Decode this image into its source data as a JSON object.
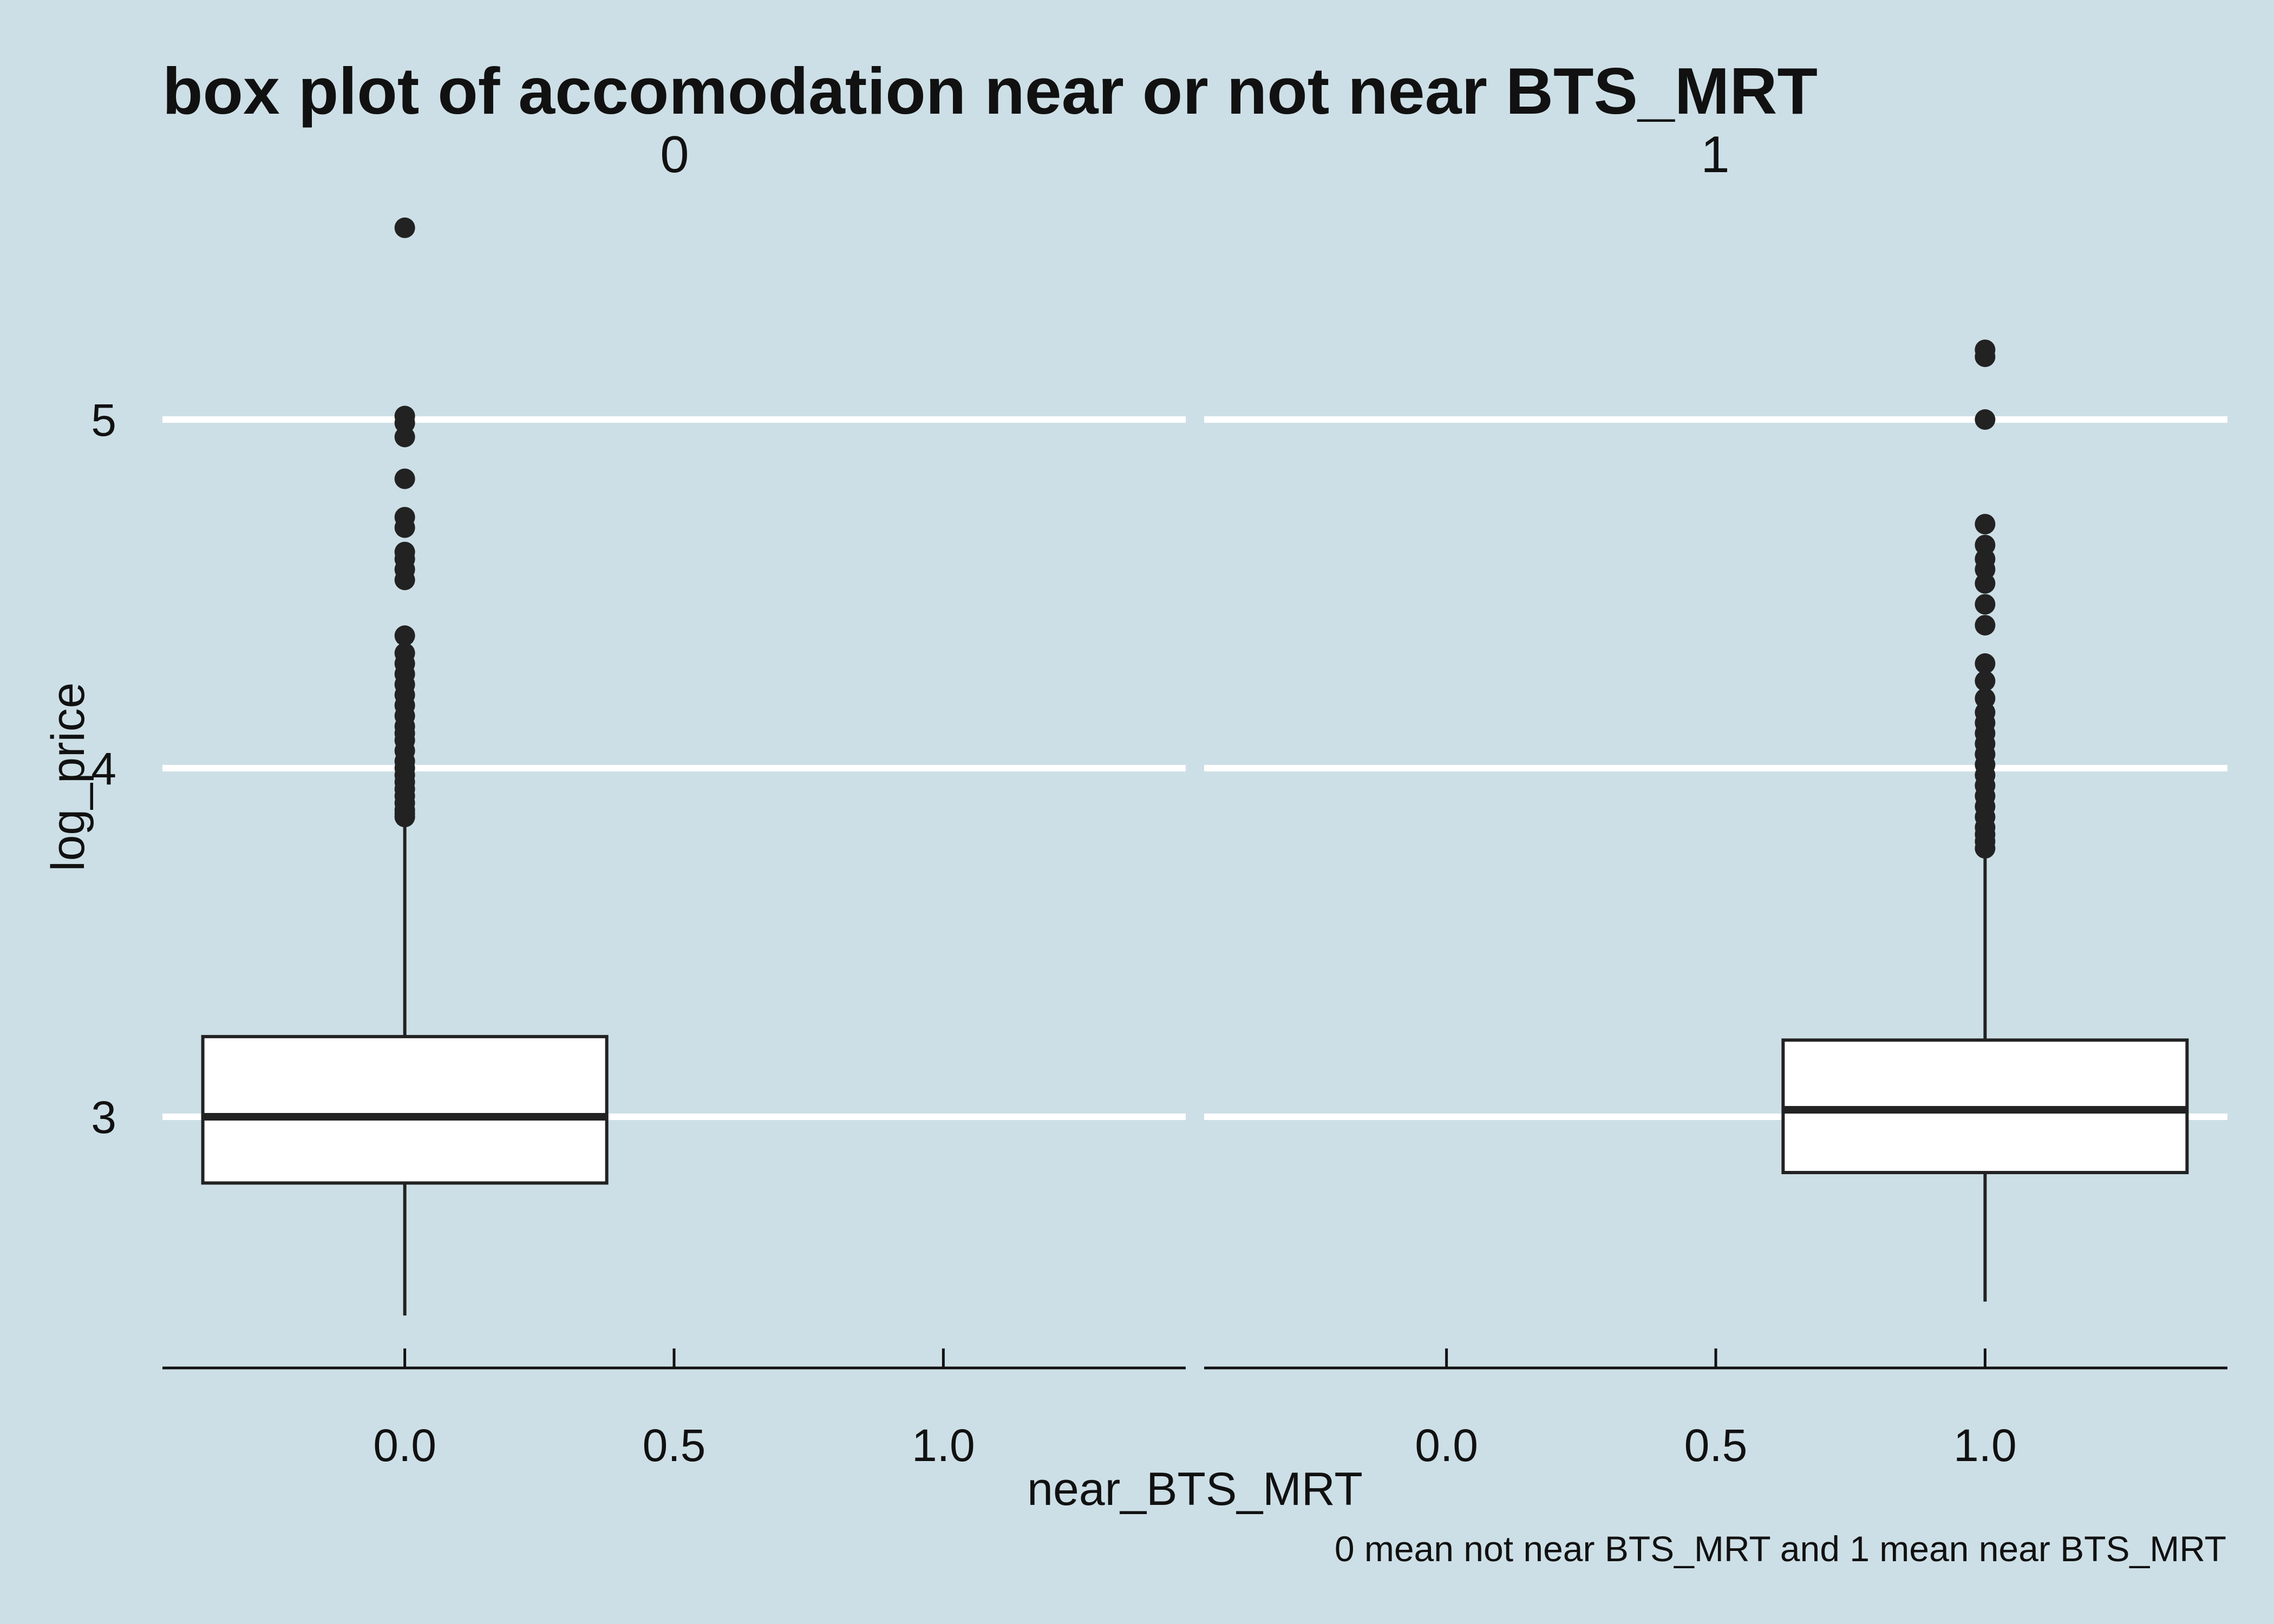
{
  "chart_data": {
    "type": "boxplot",
    "title": "box plot of accomodation near or not near BTS_MRT",
    "caption": "0 mean not near BTS_MRT and 1 mean near BTS_MRT",
    "xlabel": "near_BTS_MRT",
    "ylabel": "log_price",
    "facet_variable": "near_BTS_MRT",
    "grid": "horizontal major only",
    "colors": {
      "background": "#cddfe6",
      "grid": "#ffffff",
      "box_fill": "#ffffff",
      "ink": "#222222"
    },
    "ylim": [
      2.3,
      5.7
    ],
    "y_ticks": [
      3,
      4,
      5
    ],
    "y_tick_labels": [
      "3",
      "4",
      "5"
    ],
    "xlim": [
      -0.45,
      1.45
    ],
    "x_ticks": [
      0.0,
      0.5,
      1.0
    ],
    "x_tick_labels": [
      "0.0",
      "0.5",
      "1.0"
    ],
    "panels": [
      {
        "facet": "0",
        "box": {
          "x": 0,
          "width": 0.75,
          "lower_whisker": 2.43,
          "q1": 2.81,
          "median": 3.0,
          "q3": 3.23,
          "upper_whisker": 3.86,
          "outliers": [
            3.86,
            3.87,
            3.88,
            3.9,
            3.92,
            3.94,
            3.96,
            3.98,
            4.0,
            4.02,
            4.05,
            4.08,
            4.1,
            4.12,
            4.15,
            4.18,
            4.21,
            4.24,
            4.27,
            4.3,
            4.33,
            4.38,
            4.54,
            4.57,
            4.6,
            4.62,
            4.69,
            4.72,
            4.83,
            4.95,
            4.99,
            5.01,
            5.55
          ]
        }
      },
      {
        "facet": "1",
        "box": {
          "x": 1,
          "width": 0.75,
          "lower_whisker": 2.47,
          "q1": 2.84,
          "median": 3.02,
          "q3": 3.22,
          "upper_whisker": 3.77,
          "outliers": [
            3.77,
            3.79,
            3.81,
            3.83,
            3.86,
            3.89,
            3.92,
            3.95,
            3.98,
            4.01,
            4.04,
            4.07,
            4.1,
            4.13,
            4.16,
            4.2,
            4.25,
            4.3,
            4.41,
            4.47,
            4.53,
            4.57,
            4.6,
            4.64,
            4.7,
            5.0,
            5.18,
            5.2
          ]
        }
      }
    ]
  }
}
